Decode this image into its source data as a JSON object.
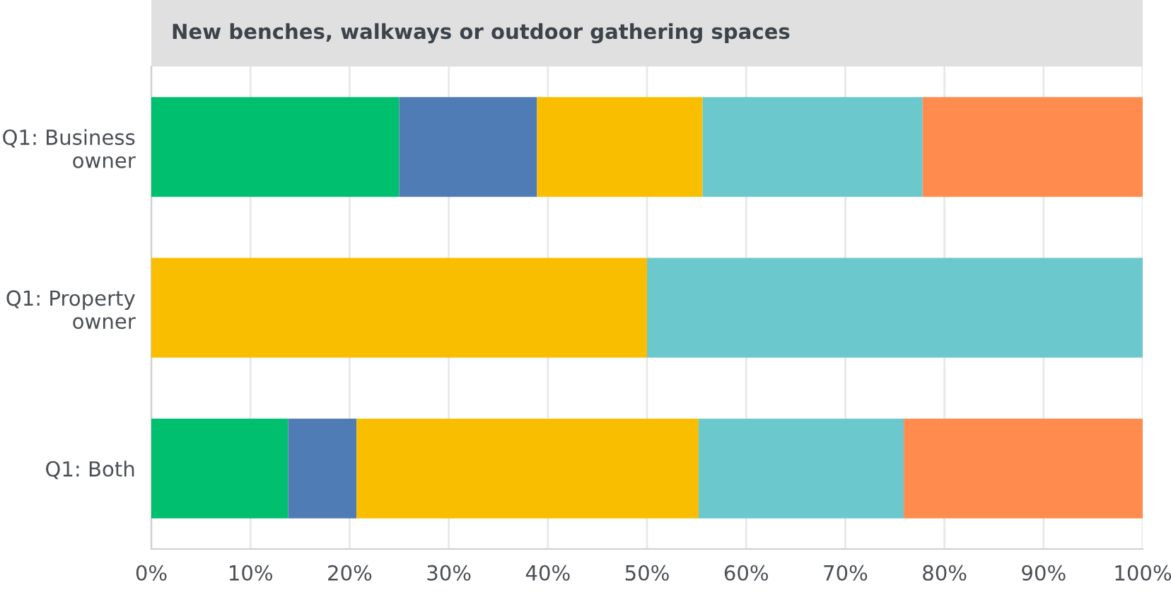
{
  "chart_data": {
    "type": "bar",
    "orientation": "horizontal",
    "stacked": true,
    "title": "New benches, walkways or outdoor gathering spaces",
    "categories": [
      "Q1: Business\nowner",
      "Q1: Property\nowner",
      "Q1: Both"
    ],
    "series": [
      {
        "color": "#00bf6f",
        "values": [
          25,
          0,
          13.8
        ]
      },
      {
        "color": "#507cb6",
        "values": [
          13.9,
          0,
          6.9
        ]
      },
      {
        "color": "#f9be00",
        "values": [
          16.7,
          50,
          34.5
        ]
      },
      {
        "color": "#6bc8cd",
        "values": [
          22.2,
          50,
          20.7
        ]
      },
      {
        "color": "#ff8b4f",
        "values": [
          22.2,
          0,
          24.1
        ]
      }
    ],
    "xlim": [
      0,
      100
    ],
    "xticks": [
      {
        "value": 0,
        "label": "0%"
      },
      {
        "value": 10,
        "label": "10%"
      },
      {
        "value": 20,
        "label": "20%"
      },
      {
        "value": 30,
        "label": "30%"
      },
      {
        "value": 40,
        "label": "40%"
      },
      {
        "value": 50,
        "label": "50%"
      },
      {
        "value": 60,
        "label": "60%"
      },
      {
        "value": 70,
        "label": "70%"
      },
      {
        "value": 80,
        "label": "80%"
      },
      {
        "value": 90,
        "label": "90%"
      },
      {
        "value": 100,
        "label": "100%"
      }
    ],
    "grid": "x",
    "legend": false
  }
}
